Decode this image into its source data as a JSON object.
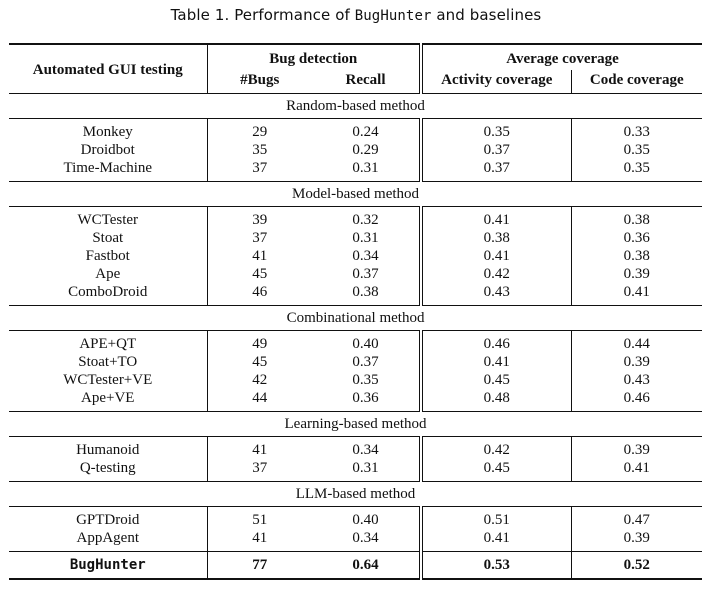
{
  "caption": {
    "prefix": "Table 1.  Performance of ",
    "tool": "BugHunter",
    "suffix": " and baselines"
  },
  "header": {
    "name_col": "Automated GUI testing",
    "bug_detection": "Bug detection",
    "average_coverage": "Average coverage",
    "bugs": "#Bugs",
    "recall": "Recall",
    "activity_coverage": "Activity coverage",
    "code_coverage": "Code coverage"
  },
  "groups": [
    {
      "title": "Random-based method",
      "rows": [
        {
          "name": "Monkey",
          "bugs": "29",
          "recall": "0.24",
          "activity": "0.35",
          "code": "0.33"
        },
        {
          "name": "Droidbot",
          "bugs": "35",
          "recall": "0.29",
          "activity": "0.37",
          "code": "0.35"
        },
        {
          "name": "Time-Machine",
          "bugs": "37",
          "recall": "0.31",
          "activity": "0.37",
          "code": "0.35"
        }
      ]
    },
    {
      "title": "Model-based method",
      "rows": [
        {
          "name": "WCTester",
          "bugs": "39",
          "recall": "0.32",
          "activity": "0.41",
          "code": "0.38"
        },
        {
          "name": "Stoat",
          "bugs": "37",
          "recall": "0.31",
          "activity": "0.38",
          "code": "0.36"
        },
        {
          "name": "Fastbot",
          "bugs": "41",
          "recall": "0.34",
          "activity": "0.41",
          "code": "0.38"
        },
        {
          "name": "Ape",
          "bugs": "45",
          "recall": "0.37",
          "activity": "0.42",
          "code": "0.39"
        },
        {
          "name": "ComboDroid",
          "bugs": "46",
          "recall": "0.38",
          "activity": "0.43",
          "code": "0.41"
        }
      ]
    },
    {
      "title": "Combinational method",
      "rows": [
        {
          "name": "APE+QT",
          "bugs": "49",
          "recall": "0.40",
          "activity": "0.46",
          "code": "0.44"
        },
        {
          "name": "Stoat+TO",
          "bugs": "45",
          "recall": "0.37",
          "activity": "0.41",
          "code": "0.39"
        },
        {
          "name": "WCTester+VE",
          "bugs": "42",
          "recall": "0.35",
          "activity": "0.45",
          "code": "0.43"
        },
        {
          "name": "Ape+VE",
          "bugs": "44",
          "recall": "0.36",
          "activity": "0.48",
          "code": "0.46"
        }
      ]
    },
    {
      "title": "Learning-based method",
      "rows": [
        {
          "name": "Humanoid",
          "bugs": "41",
          "recall": "0.34",
          "activity": "0.42",
          "code": "0.39"
        },
        {
          "name": "Q-testing",
          "bugs": "37",
          "recall": "0.31",
          "activity": "0.45",
          "code": "0.41"
        }
      ]
    },
    {
      "title": "LLM-based method",
      "rows": [
        {
          "name": "GPTDroid",
          "bugs": "51",
          "recall": "0.40",
          "activity": "0.51",
          "code": "0.47"
        },
        {
          "name": "AppAgent",
          "bugs": "41",
          "recall": "0.34",
          "activity": "0.41",
          "code": "0.39"
        }
      ]
    }
  ],
  "total": {
    "name": "BugHunter",
    "bugs": "77",
    "recall": "0.64",
    "activity": "0.53",
    "code": "0.52"
  }
}
